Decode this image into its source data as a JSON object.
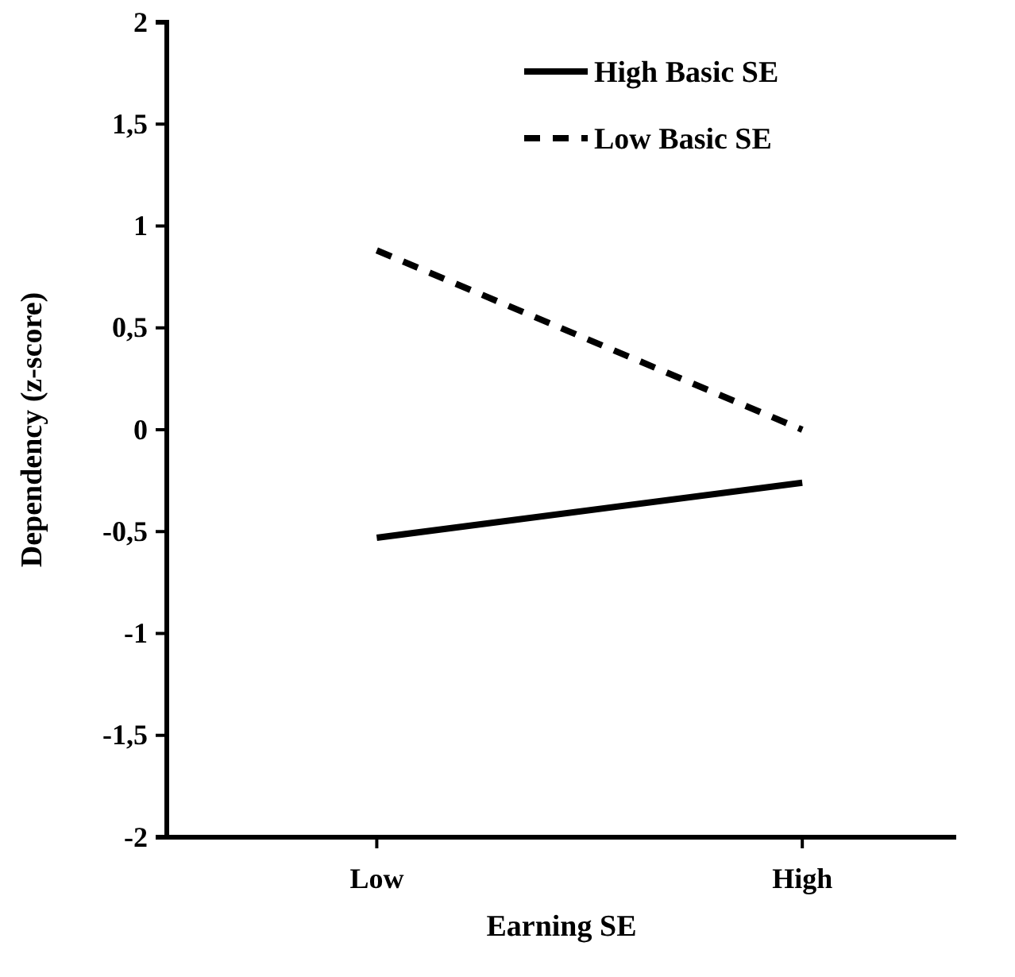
{
  "chart_data": {
    "type": "line",
    "xlabel": "Earning SE",
    "ylabel": "Dependency (z-score)",
    "categories": [
      "Low",
      "High"
    ],
    "series": [
      {
        "name": "High Basic SE",
        "color": "#000000",
        "values": [
          -0.53,
          -0.26
        ],
        "line_style": "solid"
      },
      {
        "name": "Low Basic SE",
        "color": "#000000",
        "values": [
          0.88,
          0.0
        ],
        "line_style": "dashed"
      }
    ],
    "ylim": [
      -2,
      2
    ],
    "yticks": [
      {
        "value": -2,
        "label": "-2"
      },
      {
        "value": -1.5,
        "label": "-1,5"
      },
      {
        "value": -1,
        "label": "-1"
      },
      {
        "value": -0.5,
        "label": "-0,5"
      },
      {
        "value": 0,
        "label": "0"
      },
      {
        "value": 0.5,
        "label": "0,5"
      },
      {
        "value": 1,
        "label": "1"
      },
      {
        "value": 1.5,
        "label": "1,5"
      },
      {
        "value": 2,
        "label": "2"
      }
    ],
    "grid": false,
    "legend": "top right",
    "marker": "none"
  }
}
